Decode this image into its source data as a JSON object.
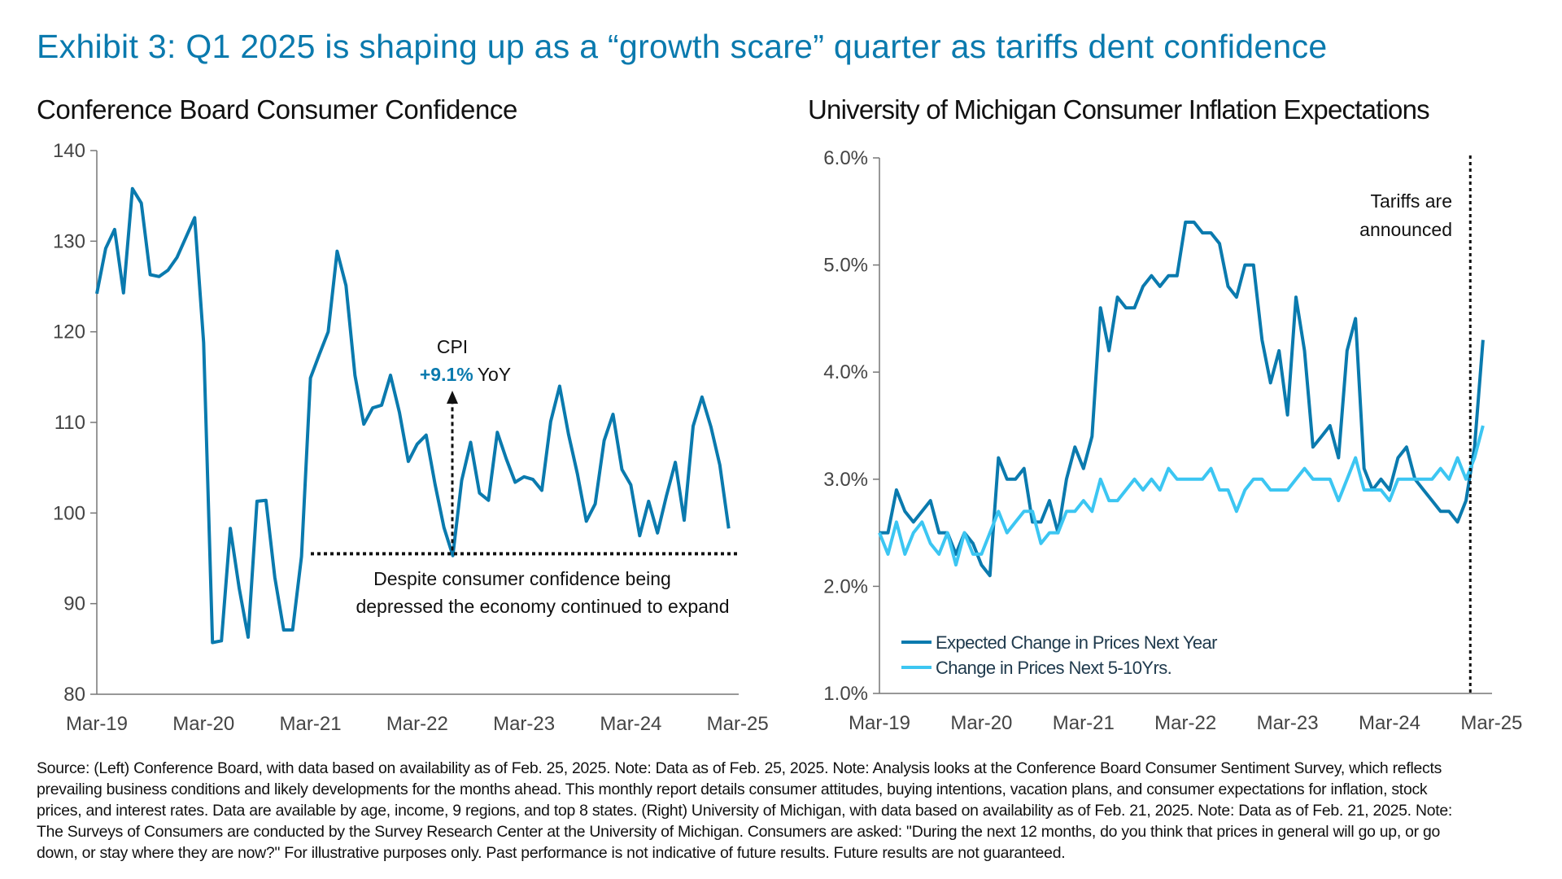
{
  "title": "Exhibit 3: Q1 2025 is shaping up as a “growth scare” quarter as tariffs dent confidence",
  "colors": {
    "title": "#0a7aae",
    "dark_series": "#0a7aae",
    "light_series": "#3cc6f2",
    "highlight": "#0a7aae"
  },
  "chart_data": [
    {
      "type": "line",
      "title": "Conference Board Consumer Confidence",
      "xlabel": "",
      "ylabel": "",
      "ylim": [
        80,
        140
      ],
      "yticks": [
        "80",
        "90",
        "100",
        "110",
        "120",
        "130",
        "140"
      ],
      "xticks": [
        "Mar-19",
        "Mar-20",
        "Mar-21",
        "Mar-22",
        "Mar-23",
        "Mar-24",
        "Mar-25"
      ],
      "x_start": "Mar-19",
      "x_end": "Feb-25",
      "frequency": "monthly",
      "grid": false,
      "series": [
        {
          "values": [
            124.2,
            129.2,
            131.3,
            124.3,
            135.8,
            134.2,
            126.3,
            126.1,
            126.8,
            128.2,
            130.4,
            132.6,
            118.8,
            85.7,
            85.9,
            98.3,
            91.7,
            86.3,
            101.3,
            101.4,
            92.9,
            87.1,
            87.1,
            95.2,
            114.9,
            117.5,
            120.0,
            128.9,
            125.1,
            115.2,
            109.8,
            111.6,
            111.9,
            115.2,
            111.1,
            105.7,
            107.6,
            108.6,
            103.2,
            98.4,
            95.3,
            103.6,
            107.8,
            102.2,
            101.4,
            108.9,
            106.0,
            103.4,
            104.0,
            103.7,
            102.5,
            110.1,
            114.0,
            108.7,
            104.3,
            99.1,
            101.0,
            108.0,
            110.9,
            104.8,
            103.1,
            97.5,
            101.3,
            97.8,
            101.9,
            105.6,
            99.2,
            109.6,
            112.8,
            109.5,
            105.3,
            98.3
          ]
        }
      ],
      "annotations": {
        "cpi_label": "CPI",
        "cpi_value": "+9.1%",
        "cpi_suffix": "YoY",
        "note_line1": "Despite consumer confidence being",
        "note_line2": "depressed the economy continued to  expand",
        "reference_level": 95.5
      }
    },
    {
      "type": "line",
      "title": "University of Michigan Consumer Inflation Expectations",
      "xlabel": "",
      "ylabel": "",
      "ylim": [
        1.0,
        6.0
      ],
      "yticks": [
        "1.0%",
        "2.0%",
        "3.0%",
        "4.0%",
        "5.0%",
        "6.0%"
      ],
      "xticks": [
        "Mar-19",
        "Mar-20",
        "Mar-21",
        "Mar-22",
        "Mar-23",
        "Mar-24",
        "Mar-25"
      ],
      "x_start": "Mar-19",
      "x_end": "Feb-25",
      "frequency": "monthly",
      "grid": false,
      "legend_position": "bottom-left",
      "series": [
        {
          "name": "Expected Change in Prices Next Year",
          "color": "#0a7aae",
          "values": [
            2.5,
            2.5,
            2.9,
            2.7,
            2.6,
            2.7,
            2.8,
            2.5,
            2.5,
            2.3,
            2.5,
            2.4,
            2.2,
            2.1,
            3.2,
            3.0,
            3.0,
            3.1,
            2.6,
            2.6,
            2.8,
            2.5,
            3.0,
            3.3,
            3.1,
            3.4,
            4.6,
            4.2,
            4.7,
            4.6,
            4.6,
            4.8,
            4.9,
            4.8,
            4.9,
            4.9,
            5.4,
            5.4,
            5.3,
            5.3,
            5.2,
            4.8,
            4.7,
            5.0,
            5.0,
            4.3,
            3.9,
            4.2,
            3.6,
            4.7,
            4.2,
            3.3,
            3.4,
            3.5,
            3.2,
            4.2,
            4.5,
            3.1,
            2.9,
            3.0,
            2.9,
            3.2,
            3.3,
            3.0,
            2.9,
            2.8,
            2.7,
            2.7,
            2.6,
            2.8,
            3.3,
            4.3
          ]
        },
        {
          "name": "Change in Prices Next 5-10Yrs.",
          "color": "#3cc6f2",
          "values": [
            2.5,
            2.3,
            2.6,
            2.3,
            2.5,
            2.6,
            2.4,
            2.3,
            2.5,
            2.2,
            2.5,
            2.3,
            2.3,
            2.5,
            2.7,
            2.5,
            2.6,
            2.7,
            2.7,
            2.4,
            2.5,
            2.5,
            2.7,
            2.7,
            2.8,
            2.7,
            3.0,
            2.8,
            2.8,
            2.9,
            3.0,
            2.9,
            3.0,
            2.9,
            3.1,
            3.0,
            3.0,
            3.0,
            3.0,
            3.1,
            2.9,
            2.9,
            2.7,
            2.9,
            3.0,
            3.0,
            2.9,
            2.9,
            2.9,
            3.0,
            3.1,
            3.0,
            3.0,
            3.0,
            2.8,
            3.0,
            3.2,
            2.9,
            2.9,
            2.9,
            2.8,
            3.0,
            3.0,
            3.0,
            3.0,
            3.0,
            3.1,
            3.0,
            3.2,
            3.0,
            3.2,
            3.5
          ]
        }
      ],
      "annotations": {
        "event_line1": "Tariffs are",
        "event_line2": "announced",
        "event_index": 69.5
      }
    }
  ],
  "footnote": [
    "Source: (Left) Conference Board, with data based on availability as of Feb. 25, 2025. Note: Data as of Feb. 25, 2025. Note: Analysis looks at the Conference Board Consumer Sentiment Survey, which reflects",
    "prevailing business conditions and likely developments for the months ahead. This monthly report details consumer attitudes, buying intentions, vacation plans, and consumer expectations for inflation, stock",
    "prices, and interest rates. Data are available by age, income, 9 regions, and top 8 states. (Right) University of Michigan, with data based on availability as of Feb. 21, 2025. Note: Data as of Feb. 21, 2025. Note:",
    "The Surveys of Consumers are conducted by the Survey Research Center at the University of Michigan. Consumers are asked: \"During the next 12 months, do you think that prices in general will go up, or go",
    "down, or stay where they are now?\" For illustrative purposes only. Past performance is not indicative of future results. Future results are not guaranteed."
  ]
}
